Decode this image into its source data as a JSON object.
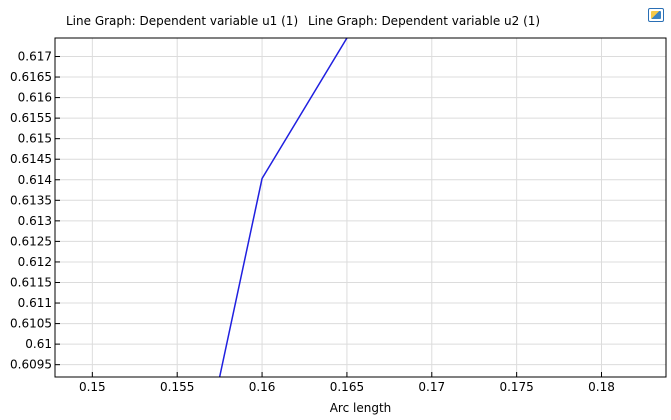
{
  "chart_data": {
    "type": "line",
    "legend_titles": [
      "Line Graph: Dependent variable u1 (1)",
      "Line Graph: Dependent variable u2 (1)"
    ],
    "xlabel": "Arc length",
    "ylabel": "",
    "xlim": [
      0.1478,
      0.1838
    ],
    "ylim": [
      0.6092,
      0.61745
    ],
    "x_ticks": [
      "0.15",
      "0.155",
      "0.16",
      "0.165",
      "0.17",
      "0.175",
      "0.18"
    ],
    "y_ticks": [
      "0.6095",
      "0.61",
      "0.6105",
      "0.611",
      "0.6115",
      "0.612",
      "0.6125",
      "0.613",
      "0.6135",
      "0.614",
      "0.6145",
      "0.615",
      "0.6155",
      "0.616",
      "0.6165",
      "0.617"
    ],
    "grid": true,
    "series": [
      {
        "color": "#2020e0",
        "x": [
          0.1575,
          0.16,
          0.165
        ],
        "y": [
          0.6092,
          0.61403,
          0.61745
        ]
      }
    ]
  }
}
